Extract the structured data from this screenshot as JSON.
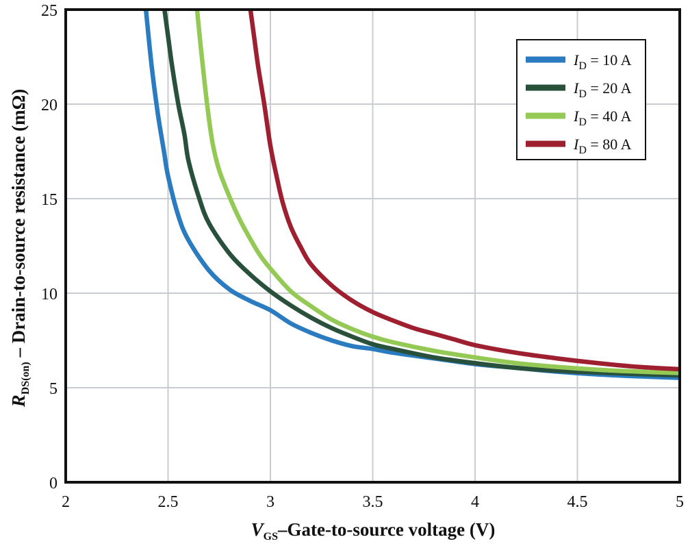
{
  "chart_data": {
    "type": "line",
    "title": "",
    "xlabel": {
      "symbol": "V",
      "subscript": "GS",
      "text": "–Gate-to-source voltage (V)"
    },
    "ylabel": {
      "symbol": "R",
      "subscript": "DS(on)",
      "text": " – Drain-to-source resistance (mΩ)"
    },
    "xlim": [
      2,
      5
    ],
    "ylim": [
      0,
      25
    ],
    "xticks": [
      2,
      2.5,
      3,
      3.5,
      4,
      4.5,
      5
    ],
    "xtick_labels": [
      "2",
      "2.5",
      "3",
      "3.5",
      "4",
      "4.5",
      "5"
    ],
    "yticks": [
      0,
      5,
      10,
      15,
      20,
      25
    ],
    "ytick_labels": [
      "0",
      "5",
      "10",
      "15",
      "20",
      "25"
    ],
    "grid": true,
    "legend_position": "top-right",
    "series": [
      {
        "name": "I_D = 10 A",
        "legend": {
          "symbol": "I",
          "subscript": "D",
          "text": " = 10 A"
        },
        "color": "#2a7bbf",
        "points": [
          [
            2.39,
            25.2
          ],
          [
            2.42,
            22.0
          ],
          [
            2.45,
            19.5
          ],
          [
            2.48,
            17.5
          ],
          [
            2.5,
            16.2
          ],
          [
            2.55,
            14.1
          ],
          [
            2.6,
            12.8
          ],
          [
            2.7,
            11.2
          ],
          [
            2.8,
            10.2
          ],
          [
            2.9,
            9.6
          ],
          [
            3.0,
            9.1
          ],
          [
            3.1,
            8.4
          ],
          [
            3.2,
            7.9
          ],
          [
            3.3,
            7.5
          ],
          [
            3.4,
            7.2
          ],
          [
            3.5,
            7.05
          ],
          [
            3.6,
            6.85
          ],
          [
            3.8,
            6.55
          ],
          [
            4.0,
            6.25
          ],
          [
            4.2,
            6.05
          ],
          [
            4.4,
            5.85
          ],
          [
            4.6,
            5.7
          ],
          [
            4.8,
            5.6
          ],
          [
            5.0,
            5.52
          ]
        ]
      },
      {
        "name": "I_D = 20 A",
        "legend": {
          "symbol": "I",
          "subscript": "D",
          "text": " = 20 A"
        },
        "color": "#28503b",
        "points": [
          [
            2.48,
            25.2
          ],
          [
            2.5,
            23.6
          ],
          [
            2.52,
            22.0
          ],
          [
            2.55,
            20.0
          ],
          [
            2.58,
            18.4
          ],
          [
            2.6,
            17.0
          ],
          [
            2.65,
            15.1
          ],
          [
            2.7,
            13.7
          ],
          [
            2.8,
            12.1
          ],
          [
            2.9,
            11.0
          ],
          [
            3.0,
            10.1
          ],
          [
            3.1,
            9.35
          ],
          [
            3.2,
            8.7
          ],
          [
            3.3,
            8.15
          ],
          [
            3.4,
            7.7
          ],
          [
            3.5,
            7.3
          ],
          [
            3.6,
            7.05
          ],
          [
            3.8,
            6.6
          ],
          [
            4.0,
            6.3
          ],
          [
            4.2,
            6.05
          ],
          [
            4.4,
            5.9
          ],
          [
            4.6,
            5.8
          ],
          [
            4.8,
            5.72
          ],
          [
            5.0,
            5.65
          ]
        ]
      },
      {
        "name": "I_D = 40 A",
        "legend": {
          "symbol": "I",
          "subscript": "D",
          "text": " = 40 A"
        },
        "color": "#94c955",
        "points": [
          [
            2.64,
            25.2
          ],
          [
            2.66,
            23.0
          ],
          [
            2.68,
            21.0
          ],
          [
            2.7,
            19.2
          ],
          [
            2.72,
            17.8
          ],
          [
            2.75,
            16.5
          ],
          [
            2.8,
            15.1
          ],
          [
            2.85,
            13.9
          ],
          [
            2.9,
            12.9
          ],
          [
            2.95,
            12.0
          ],
          [
            3.0,
            11.3
          ],
          [
            3.1,
            10.1
          ],
          [
            3.2,
            9.3
          ],
          [
            3.3,
            8.6
          ],
          [
            3.4,
            8.1
          ],
          [
            3.5,
            7.7
          ],
          [
            3.6,
            7.4
          ],
          [
            3.8,
            6.95
          ],
          [
            4.0,
            6.6
          ],
          [
            4.2,
            6.3
          ],
          [
            4.4,
            6.1
          ],
          [
            4.6,
            5.95
          ],
          [
            4.8,
            5.85
          ],
          [
            5.0,
            5.78
          ]
        ]
      },
      {
        "name": "I_D = 80 A",
        "legend": {
          "symbol": "I",
          "subscript": "D",
          "text": " = 80 A"
        },
        "color": "#9e2030",
        "points": [
          [
            2.9,
            25.2
          ],
          [
            2.92,
            23.6
          ],
          [
            2.94,
            22.0
          ],
          [
            2.97,
            20.0
          ],
          [
            3.0,
            17.8
          ],
          [
            3.03,
            16.2
          ],
          [
            3.06,
            14.8
          ],
          [
            3.1,
            13.5
          ],
          [
            3.15,
            12.4
          ],
          [
            3.2,
            11.5
          ],
          [
            3.3,
            10.4
          ],
          [
            3.4,
            9.6
          ],
          [
            3.5,
            9.0
          ],
          [
            3.6,
            8.55
          ],
          [
            3.7,
            8.15
          ],
          [
            3.8,
            7.85
          ],
          [
            3.9,
            7.55
          ],
          [
            4.0,
            7.25
          ],
          [
            4.2,
            6.85
          ],
          [
            4.4,
            6.55
          ],
          [
            4.6,
            6.3
          ],
          [
            4.8,
            6.1
          ],
          [
            5.0,
            5.98
          ]
        ]
      }
    ]
  }
}
